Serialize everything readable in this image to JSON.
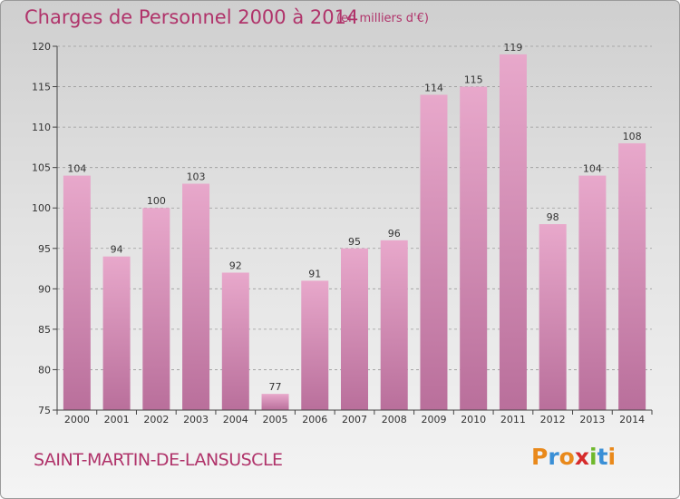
{
  "header": {
    "title": "Charges de Personnel 2000 à 2014",
    "subtitle": "(en milliers d'€)"
  },
  "footer": {
    "place": "SAINT-MARTIN-DE-LANSUSCLE",
    "logo_text": "Proxiti",
    "logo_colors": [
      "#e9891b",
      "#3a8fd6",
      "#e9891b",
      "#d62b2b",
      "#6fb82c",
      "#3a8fd6",
      "#e9891b"
    ]
  },
  "colors": {
    "bar_top": "#e8a8cb",
    "bar_bottom": "#b96f9b",
    "grid": "#9a9a9a",
    "axis": "#444444"
  },
  "chart_data": {
    "type": "bar",
    "title": "Charges de Personnel 2000 à 2014",
    "subtitle": "(en milliers d'€)",
    "categories": [
      "2000",
      "2001",
      "2002",
      "2003",
      "2004",
      "2005",
      "2006",
      "2007",
      "2008",
      "2009",
      "2010",
      "2011",
      "2012",
      "2013",
      "2014"
    ],
    "values": [
      104,
      94,
      100,
      103,
      92,
      77,
      91,
      95,
      96,
      114,
      115,
      119,
      98,
      104,
      108
    ],
    "ylim": [
      75,
      120
    ],
    "yticks": [
      75,
      80,
      85,
      90,
      95,
      100,
      105,
      110,
      115,
      120
    ],
    "xlabel": "",
    "ylabel": "",
    "grid": "horizontal dashed",
    "legend": "none"
  }
}
